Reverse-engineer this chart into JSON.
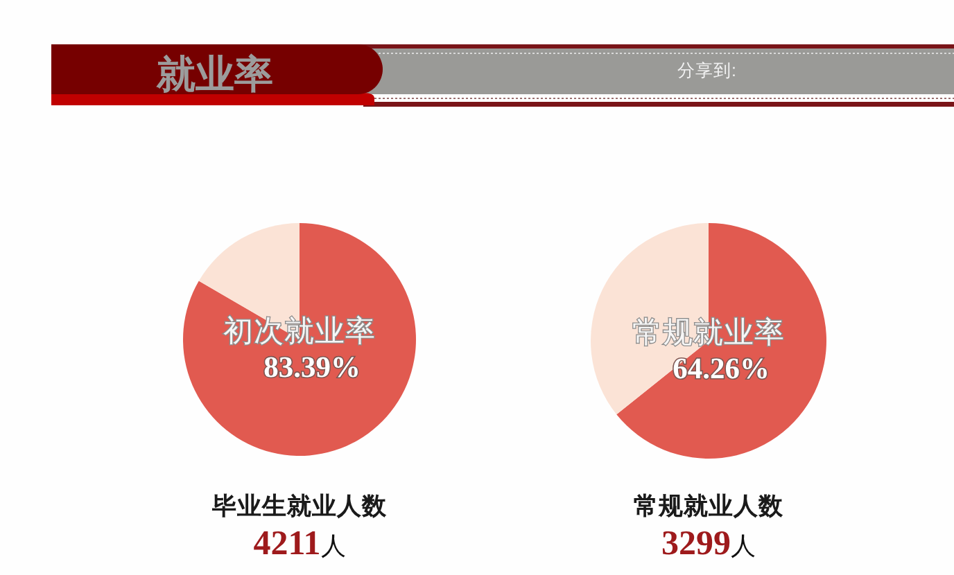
{
  "chart_data": [
    {
      "type": "other",
      "title": "就业率",
      "annotations": [
        "分享到:"
      ]
    },
    {
      "type": "pie",
      "categories": [
        "初次就业率",
        null
      ],
      "values": [
        83.39,
        16.61
      ],
      "colors": [
        "#e15a50",
        "#fbe3d6"
      ],
      "value_labels": [
        "83.39%",
        null
      ],
      "annotations": [
        "毕业生就业人数",
        "4211人"
      ]
    },
    {
      "type": "pie",
      "categories": [
        "常规就业率",
        null
      ],
      "values": [
        64.26,
        35.74
      ],
      "colors": [
        "#e15a50",
        "#fbe3d6"
      ],
      "value_labels": [
        "64.26%",
        null
      ],
      "annotations": [
        "常规就业人数",
        "3299人"
      ]
    }
  ]
}
